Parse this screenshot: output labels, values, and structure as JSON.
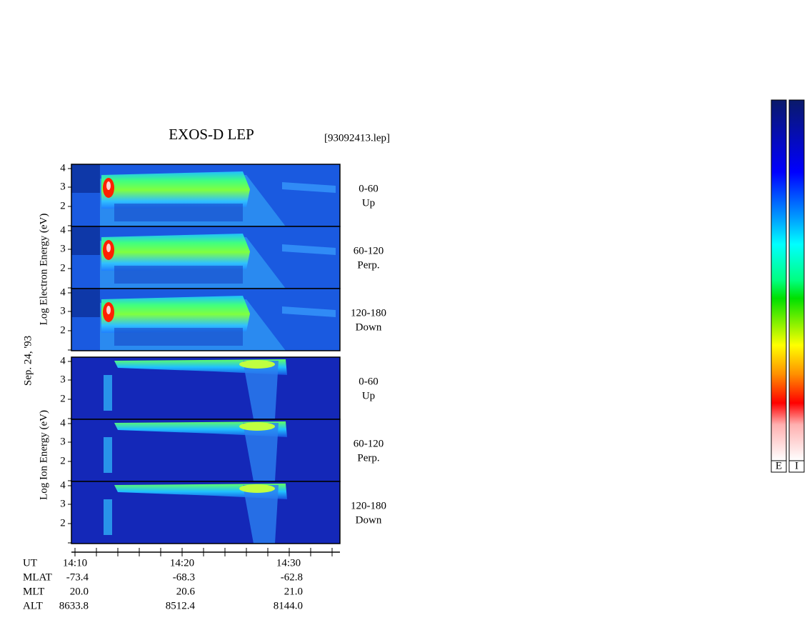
{
  "header": {
    "title": "EXOS-D LEP",
    "file": "[93092413.lep]"
  },
  "date": "Sep. 24, '93",
  "groups": [
    {
      "label": "Log Electron Energy (eV)",
      "panels": [
        {
          "yticks": [
            "2",
            "3",
            "4"
          ],
          "range": "0-60",
          "direction": "Up"
        },
        {
          "yticks": [
            "2",
            "3",
            "4"
          ],
          "range": "60-120",
          "direction": "Perp."
        },
        {
          "yticks": [
            "2",
            "3",
            "4"
          ],
          "range": "120-180",
          "direction": "Down"
        }
      ]
    },
    {
      "label": "Log Ion Energy (eV)",
      "panels": [
        {
          "yticks": [
            "2",
            "3",
            "4"
          ],
          "range": "0-60",
          "direction": "Up"
        },
        {
          "yticks": [
            "2",
            "3",
            "4"
          ],
          "range": "60-120",
          "direction": "Perp."
        },
        {
          "yticks": [
            "2",
            "3",
            "4"
          ],
          "range": "120-180",
          "direction": "Down"
        }
      ]
    }
  ],
  "time_axis": {
    "name": "UT",
    "labels": [
      "14:10",
      "14:20",
      "14:30"
    ]
  },
  "ephemeris": [
    {
      "name": "MLAT",
      "values": [
        "-73.4",
        "-68.3",
        "-62.8"
      ]
    },
    {
      "name": "MLT",
      "values": [
        "20.0",
        "20.6",
        "21.0"
      ]
    },
    {
      "name": "ALT",
      "values": [
        "8633.8",
        "8512.4",
        "8144.0"
      ]
    }
  ],
  "colorbar_labels": [
    "E",
    "I"
  ]
}
